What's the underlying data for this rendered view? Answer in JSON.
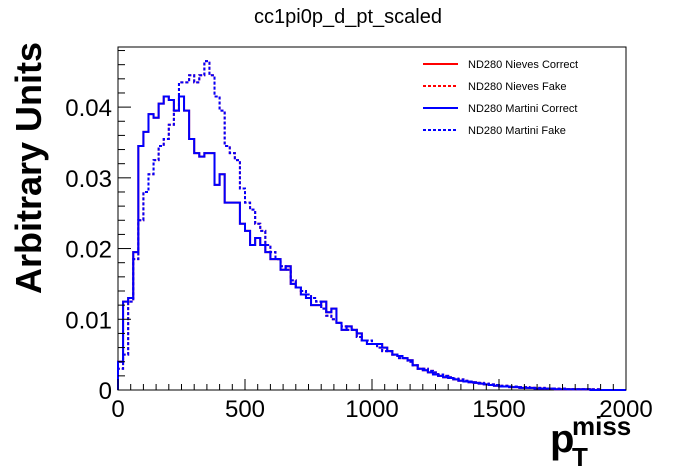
{
  "chart_data": {
    "type": "line",
    "title": "cc1pi0p_d_pt_scaled",
    "ylabel": "Arbitrary Units",
    "xlabel": {
      "main": "p",
      "sup": "miss",
      "sub": "T"
    },
    "xlim": [
      0,
      2000
    ],
    "ylim": [
      0,
      0.0485
    ],
    "x_ticks": [
      0,
      500,
      1000,
      1500,
      2000
    ],
    "x_tick_labels": [
      "0",
      "500",
      "1000",
      "1500",
      "2000"
    ],
    "y_ticks": [
      0,
      0.01,
      0.02,
      0.03,
      0.04
    ],
    "y_tick_labels": [
      "0",
      "0.01",
      "0.02",
      "0.03",
      "0.04"
    ],
    "grid": false,
    "legend_position": "top-right",
    "bin_width": 20,
    "series": [
      {
        "name": "ND280 Nieves Correct",
        "color": "#ff0000",
        "dashed": false,
        "values": [
          0.004,
          0.0125,
          0.013,
          0.0195,
          0.0345,
          0.0365,
          0.039,
          0.0385,
          0.0405,
          0.0415,
          0.041,
          0.0395,
          0.0415,
          0.0395,
          0.0355,
          0.0335,
          0.033,
          0.0335,
          0.0335,
          0.029,
          0.0305,
          0.0265,
          0.0265,
          0.0265,
          0.0235,
          0.0225,
          0.0205,
          0.0215,
          0.0205,
          0.0195,
          0.0185,
          0.0185,
          0.017,
          0.0175,
          0.015,
          0.0145,
          0.0135,
          0.013,
          0.012,
          0.012,
          0.0125,
          0.011,
          0.0115,
          0.0095,
          0.0085,
          0.009,
          0.0085,
          0.008,
          0.007,
          0.0065,
          0.0065,
          0.0065,
          0.006,
          0.0055,
          0.005,
          0.0048,
          0.0045,
          0.0042,
          0.0035,
          0.003,
          0.0028,
          0.0025,
          0.0022,
          0.002,
          0.0018,
          0.0017,
          0.0015,
          0.0013,
          0.0012,
          0.0011,
          0.001,
          0.0009,
          0.0008,
          0.0007,
          0.0006,
          0.0005,
          0.0005,
          0.0004,
          0.0004,
          0.0003,
          0.0003,
          0.0003,
          0.0002,
          0.0002,
          0.0002,
          0.0002,
          0.0001,
          0.0001,
          0.0001,
          0.0001,
          0.0001,
          0.0001,
          0.0001,
          0.0,
          0.0,
          0.0,
          0.0,
          0.0,
          0.0,
          0.0
        ]
      },
      {
        "name": "ND280 Nieves Fake",
        "color": "#ff0000",
        "dashed": true,
        "values": [
          0.003,
          0.005,
          0.0125,
          0.0185,
          0.024,
          0.028,
          0.0305,
          0.0325,
          0.0345,
          0.0355,
          0.0375,
          0.0395,
          0.0435,
          0.0435,
          0.0445,
          0.0435,
          0.0445,
          0.0465,
          0.0445,
          0.0415,
          0.0395,
          0.0345,
          0.0335,
          0.0325,
          0.0285,
          0.0265,
          0.0255,
          0.0235,
          0.0225,
          0.0205,
          0.0195,
          0.0185,
          0.0175,
          0.017,
          0.0155,
          0.0145,
          0.014,
          0.0135,
          0.013,
          0.0125,
          0.0115,
          0.0105,
          0.01,
          0.0095,
          0.009,
          0.0085,
          0.0085,
          0.0075,
          0.007,
          0.007,
          0.0065,
          0.006,
          0.0055,
          0.0055,
          0.005,
          0.0045,
          0.0045,
          0.004,
          0.0035,
          0.003,
          0.003,
          0.0027,
          0.0025,
          0.0022,
          0.002,
          0.0018,
          0.0016,
          0.0015,
          0.0013,
          0.0012,
          0.0011,
          0.001,
          0.0009,
          0.0008,
          0.0007,
          0.0006,
          0.0006,
          0.0005,
          0.0005,
          0.0004,
          0.0004,
          0.0003,
          0.0003,
          0.0003,
          0.0002,
          0.0002,
          0.0002,
          0.0002,
          0.0001,
          0.0001,
          0.0001,
          0.0001,
          0.0001,
          0.0001,
          0.0001,
          0.0,
          0.0,
          0.0,
          0.0,
          0.0
        ]
      },
      {
        "name": "ND280 Martini Correct",
        "color": "#0000ff",
        "dashed": false,
        "values": [
          0.004,
          0.0125,
          0.013,
          0.0195,
          0.0345,
          0.0365,
          0.039,
          0.0385,
          0.0405,
          0.0415,
          0.041,
          0.0395,
          0.0415,
          0.0395,
          0.0355,
          0.0335,
          0.033,
          0.0335,
          0.0335,
          0.029,
          0.0305,
          0.0265,
          0.0265,
          0.0265,
          0.0235,
          0.0225,
          0.0205,
          0.0215,
          0.0205,
          0.0195,
          0.0185,
          0.0185,
          0.017,
          0.0175,
          0.015,
          0.0145,
          0.0135,
          0.013,
          0.012,
          0.012,
          0.0125,
          0.011,
          0.0115,
          0.0095,
          0.0085,
          0.009,
          0.0085,
          0.008,
          0.007,
          0.0065,
          0.0065,
          0.0065,
          0.006,
          0.0055,
          0.005,
          0.0048,
          0.0045,
          0.0042,
          0.0035,
          0.003,
          0.0028,
          0.0025,
          0.0022,
          0.002,
          0.0018,
          0.0017,
          0.0015,
          0.0013,
          0.0012,
          0.0011,
          0.001,
          0.0009,
          0.0008,
          0.0007,
          0.0006,
          0.0005,
          0.0005,
          0.0004,
          0.0004,
          0.0003,
          0.0003,
          0.0003,
          0.0002,
          0.0002,
          0.0002,
          0.0002,
          0.0001,
          0.0001,
          0.0001,
          0.0001,
          0.0001,
          0.0001,
          0.0001,
          0.0,
          0.0,
          0.0,
          0.0,
          0.0,
          0.0,
          0.0
        ]
      },
      {
        "name": "ND280 Martini Fake",
        "color": "#0000ff",
        "dashed": true,
        "values": [
          0.003,
          0.005,
          0.0125,
          0.0185,
          0.024,
          0.028,
          0.0305,
          0.0325,
          0.0345,
          0.0355,
          0.0375,
          0.0395,
          0.0435,
          0.0435,
          0.0445,
          0.0435,
          0.0445,
          0.0465,
          0.0445,
          0.0415,
          0.0395,
          0.0345,
          0.0335,
          0.0325,
          0.0285,
          0.0265,
          0.0255,
          0.0235,
          0.0225,
          0.0205,
          0.0195,
          0.0185,
          0.0175,
          0.017,
          0.0155,
          0.0145,
          0.014,
          0.0135,
          0.013,
          0.0125,
          0.0115,
          0.0105,
          0.01,
          0.0095,
          0.009,
          0.0085,
          0.0085,
          0.0075,
          0.007,
          0.007,
          0.0065,
          0.006,
          0.0055,
          0.0055,
          0.005,
          0.0045,
          0.0045,
          0.004,
          0.0035,
          0.003,
          0.003,
          0.0027,
          0.0025,
          0.0022,
          0.002,
          0.0018,
          0.0016,
          0.0015,
          0.0013,
          0.0012,
          0.0011,
          0.001,
          0.0009,
          0.0008,
          0.0007,
          0.0006,
          0.0006,
          0.0005,
          0.0005,
          0.0004,
          0.0004,
          0.0003,
          0.0003,
          0.0003,
          0.0002,
          0.0002,
          0.0002,
          0.0002,
          0.0001,
          0.0001,
          0.0001,
          0.0001,
          0.0001,
          0.0001,
          0.0001,
          0.0,
          0.0,
          0.0,
          0.0,
          0.0
        ]
      }
    ]
  }
}
